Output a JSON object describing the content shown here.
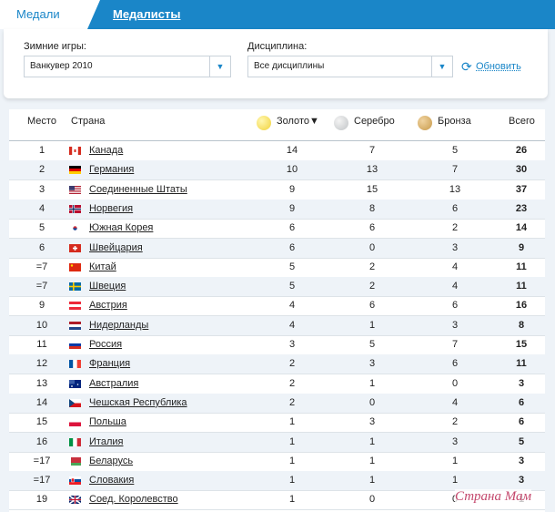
{
  "tabs": {
    "active": "Медали",
    "other": "Медалисты"
  },
  "filters": {
    "games_label": "Зимние игры:",
    "games_value": "Ванкувер 2010",
    "discipline_label": "Дисциплина:",
    "discipline_value": "Все дисциплины",
    "refresh_label": "Обновить"
  },
  "columns": {
    "place": "Место",
    "country": "Страна",
    "gold": "Золото▼",
    "silver": "Серебро",
    "bronze": "Бронза",
    "total": "Всего"
  },
  "colors": {
    "gold": "#f1d23a",
    "silver": "#c0c3c6",
    "bronze": "#c89a4a",
    "accent": "#1a86c8"
  },
  "rows": [
    {
      "place": "1",
      "country": "Канада",
      "flag": "ca",
      "gold": "14",
      "silver": "7",
      "bronze": "5",
      "total": "26"
    },
    {
      "place": "2",
      "country": "Германия",
      "flag": "de",
      "gold": "10",
      "silver": "13",
      "bronze": "7",
      "total": "30"
    },
    {
      "place": "3",
      "country": "Соединенные Штаты",
      "flag": "us",
      "gold": "9",
      "silver": "15",
      "bronze": "13",
      "total": "37"
    },
    {
      "place": "4",
      "country": "Норвегия",
      "flag": "no",
      "gold": "9",
      "silver": "8",
      "bronze": "6",
      "total": "23"
    },
    {
      "place": "5",
      "country": "Южная Корея",
      "flag": "kr",
      "gold": "6",
      "silver": "6",
      "bronze": "2",
      "total": "14"
    },
    {
      "place": "6",
      "country": "Швейцария",
      "flag": "ch",
      "gold": "6",
      "silver": "0",
      "bronze": "3",
      "total": "9"
    },
    {
      "place": "=7",
      "country": "Китай",
      "flag": "cn",
      "gold": "5",
      "silver": "2",
      "bronze": "4",
      "total": "11"
    },
    {
      "place": "=7",
      "country": "Швеция",
      "flag": "se",
      "gold": "5",
      "silver": "2",
      "bronze": "4",
      "total": "11"
    },
    {
      "place": "9",
      "country": "Австрия",
      "flag": "at",
      "gold": "4",
      "silver": "6",
      "bronze": "6",
      "total": "16"
    },
    {
      "place": "10",
      "country": "Нидерланды",
      "flag": "nl",
      "gold": "4",
      "silver": "1",
      "bronze": "3",
      "total": "8"
    },
    {
      "place": "11",
      "country": "Россия",
      "flag": "ru",
      "gold": "3",
      "silver": "5",
      "bronze": "7",
      "total": "15"
    },
    {
      "place": "12",
      "country": "Франция",
      "flag": "fr",
      "gold": "2",
      "silver": "3",
      "bronze": "6",
      "total": "11"
    },
    {
      "place": "13",
      "country": "Австралия",
      "flag": "au",
      "gold": "2",
      "silver": "1",
      "bronze": "0",
      "total": "3"
    },
    {
      "place": "14",
      "country": "Чешская Республика",
      "flag": "cz",
      "gold": "2",
      "silver": "0",
      "bronze": "4",
      "total": "6"
    },
    {
      "place": "15",
      "country": "Польша",
      "flag": "pl",
      "gold": "1",
      "silver": "3",
      "bronze": "2",
      "total": "6"
    },
    {
      "place": "16",
      "country": "Италия",
      "flag": "it",
      "gold": "1",
      "silver": "1",
      "bronze": "3",
      "total": "5"
    },
    {
      "place": "=17",
      "country": "Беларусь",
      "flag": "by",
      "gold": "1",
      "silver": "1",
      "bronze": "1",
      "total": "3"
    },
    {
      "place": "=17",
      "country": "Словакия",
      "flag": "sk",
      "gold": "1",
      "silver": "1",
      "bronze": "1",
      "total": "3"
    },
    {
      "place": "19",
      "country": "Соед. Королевство",
      "flag": "gb",
      "gold": "1",
      "silver": "0",
      "bronze": "0",
      "total": "1"
    }
  ],
  "watermark": "Страна Мам"
}
